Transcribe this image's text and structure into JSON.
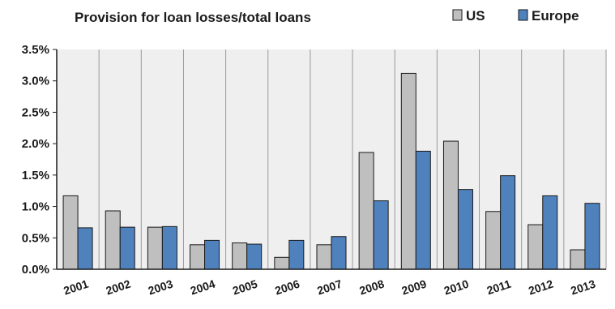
{
  "chart_data": {
    "type": "bar",
    "title": "Provision for loan losses/total loans",
    "xlabel": "",
    "ylabel": "",
    "categories": [
      "2001",
      "2002",
      "2003",
      "2004",
      "2005",
      "2006",
      "2007",
      "2008",
      "2009",
      "2010",
      "2011",
      "2012",
      "2013"
    ],
    "series": [
      {
        "name": "US",
        "color": "#bfbfbf",
        "values": [
          1.17,
          0.93,
          0.67,
          0.39,
          0.42,
          0.19,
          0.39,
          1.86,
          3.12,
          2.04,
          0.92,
          0.71,
          0.31
        ]
      },
      {
        "name": "Europe",
        "color": "#4f81bd",
        "values": [
          0.66,
          0.67,
          0.68,
          0.46,
          0.4,
          0.46,
          0.52,
          1.09,
          1.88,
          1.27,
          1.49,
          1.17,
          1.05
        ]
      }
    ],
    "ylim": [
      0,
      3.5
    ],
    "yticks": [
      "0.0%",
      "0.5%",
      "1.0%",
      "1.5%",
      "2.0%",
      "2.5%",
      "3.0%",
      "3.5%"
    ],
    "grid": "vertical",
    "legend": "top-right",
    "plot_background": "#efefef"
  }
}
